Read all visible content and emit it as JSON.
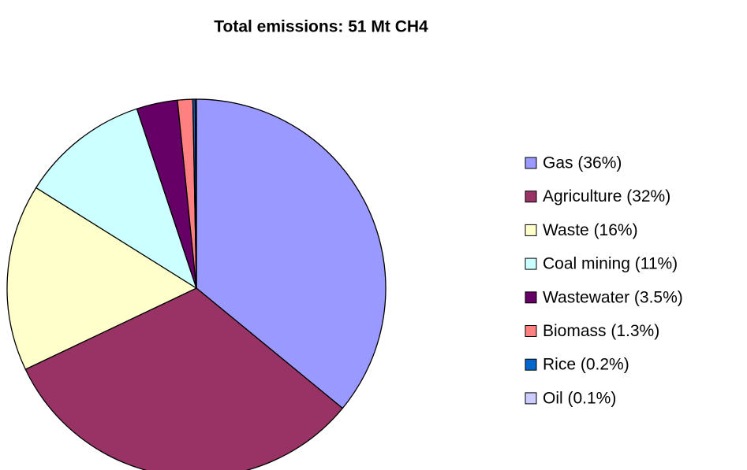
{
  "chart_data": {
    "type": "pie",
    "title": "Total emissions: 51 Mt CH4",
    "categories": [
      "Gas (36%)",
      "Agriculture (32%)",
      "Waste (16%)",
      "Coal mining (11%)",
      "Wastewater (3.5%)",
      "Biomass (1.3%)",
      "Rice (0.2%)",
      "Oil (0.1%)"
    ],
    "values": [
      36,
      32,
      16,
      11,
      3.5,
      1.3,
      0.2,
      0.1
    ],
    "colors": [
      "#9999ff",
      "#993366",
      "#ffffcc",
      "#ccffff",
      "#660066",
      "#ff8080",
      "#0066cc",
      "#ccccff"
    ],
    "legend": "right"
  }
}
